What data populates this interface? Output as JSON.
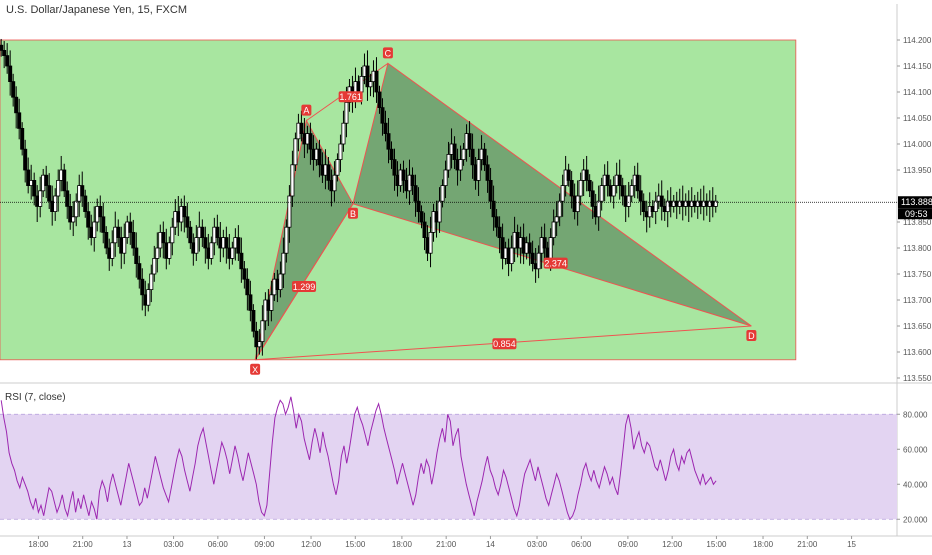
{
  "header": {
    "symbol_title": "U.S. Dollar/Japanese Yen, 15, FXCM"
  },
  "rsi_panel": {
    "title": "RSI (7, close)",
    "ticks": [
      "80.000",
      "60.000",
      "40.000",
      "20.000"
    ],
    "tick_values": [
      80,
      60,
      40,
      20
    ],
    "band": [
      20,
      80
    ],
    "ylim": [
      15,
      95
    ],
    "line_color": "#9c27b0",
    "band_color": "#e3d4f2",
    "values": [
      88,
      78,
      70,
      58,
      52,
      48,
      42,
      38,
      44,
      40,
      36,
      30,
      26,
      32,
      24,
      28,
      22,
      30,
      38,
      36,
      30,
      24,
      28,
      34,
      26,
      22,
      30,
      36,
      24,
      32,
      26,
      34,
      28,
      22,
      30,
      26,
      20,
      36,
      42,
      38,
      30,
      40,
      46,
      40,
      34,
      28,
      36,
      44,
      52,
      46,
      40,
      34,
      28,
      30,
      38,
      32,
      40,
      48,
      56,
      50,
      44,
      38,
      34,
      30,
      38,
      46,
      54,
      60,
      56,
      48,
      42,
      36,
      44,
      52,
      62,
      68,
      72,
      64,
      56,
      48,
      40,
      48,
      56,
      64,
      60,
      54,
      46,
      54,
      62,
      56,
      48,
      42,
      50,
      58,
      52,
      46,
      40,
      30,
      24,
      22,
      28,
      46,
      64,
      78,
      84,
      88,
      86,
      80,
      84,
      90,
      82,
      72,
      80,
      76,
      66,
      60,
      54,
      64,
      72,
      66,
      58,
      70,
      62,
      56,
      48,
      40,
      34,
      42,
      56,
      62,
      52,
      60,
      70,
      80,
      84,
      78,
      74,
      68,
      62,
      70,
      76,
      82,
      86,
      80,
      72,
      66,
      60,
      54,
      48,
      40,
      46,
      52,
      46,
      40,
      34,
      28,
      34,
      44,
      52,
      46,
      54,
      50,
      40,
      48,
      58,
      66,
      72,
      64,
      80,
      76,
      62,
      68,
      72,
      56,
      48,
      40,
      34,
      28,
      22,
      30,
      36,
      42,
      50,
      56,
      48,
      44,
      38,
      34,
      40,
      48,
      44,
      38,
      32,
      26,
      22,
      28,
      38,
      46,
      50,
      54,
      48,
      42,
      50,
      44,
      38,
      32,
      28,
      34,
      40,
      46,
      42,
      36,
      30,
      24,
      20,
      22,
      26,
      34,
      40,
      48,
      52,
      46,
      42,
      48,
      42,
      38,
      44,
      50,
      46,
      40,
      44,
      38,
      34,
      46,
      60,
      74,
      80,
      72,
      60,
      66,
      70,
      62,
      58,
      64,
      62,
      56,
      50,
      48,
      54,
      48,
      42,
      48,
      56,
      60,
      52,
      48,
      56,
      52,
      58,
      60,
      54,
      48,
      44,
      40,
      46,
      40,
      42,
      44,
      40,
      42
    ]
  },
  "chart_data": {
    "type": "candlestick",
    "title": "U.S. Dollar/Japanese Yen, 15, FXCM",
    "ylim": [
      113.55,
      114.25
    ],
    "y_ticks": [
      114.2,
      114.15,
      114.1,
      114.05,
      114.0,
      113.95,
      113.9,
      113.85,
      113.8,
      113.75,
      113.7,
      113.65,
      113.6,
      113.55
    ],
    "y_tick_labels": [
      "114.200",
      "114.150",
      "114.100",
      "114.050",
      "114.000",
      "113.950",
      "113.900",
      "113.850",
      "113.800",
      "113.750",
      "113.700",
      "113.650",
      "113.600",
      "113.550"
    ],
    "x_tick_labels": [
      "18:00",
      "21:00",
      "13",
      "03:00",
      "06:00",
      "09:00",
      "12:00",
      "15:00",
      "18:00",
      "21:00",
      "14",
      "03:00",
      "06:00",
      "09:00",
      "12:00",
      "15:00",
      "18:00",
      "21:00",
      "15"
    ],
    "x_tick_index": [
      16,
      35,
      54,
      74,
      93,
      113,
      133,
      152,
      172,
      191,
      210,
      230,
      249,
      269,
      288,
      307,
      327,
      346,
      365
    ],
    "bar_count": 385,
    "current_price": 113.888,
    "current_price_label": "113.888",
    "countdown_label": "09:53",
    "price_line_color": "#000000",
    "up_color": "#ffffff",
    "down_color": "#000000",
    "background_color": "#ffffff",
    "series_close": [
      114.18,
      114.17,
      114.15,
      114.12,
      114.09,
      114.06,
      114.03,
      113.99,
      113.95,
      113.92,
      113.93,
      113.9,
      113.88,
      113.91,
      113.94,
      113.92,
      113.89,
      113.87,
      113.9,
      113.93,
      113.95,
      113.91,
      113.88,
      113.85,
      113.86,
      113.89,
      113.92,
      113.9,
      113.87,
      113.84,
      113.82,
      113.85,
      113.88,
      113.86,
      113.83,
      113.8,
      113.78,
      113.81,
      113.84,
      113.82,
      113.79,
      113.82,
      113.85,
      113.83,
      113.8,
      113.77,
      113.74,
      113.71,
      113.69,
      113.72,
      113.75,
      113.78,
      113.8,
      113.83,
      113.81,
      113.78,
      113.81,
      113.84,
      113.87,
      113.85,
      113.88,
      113.86,
      113.84,
      113.81,
      113.79,
      113.82,
      113.84,
      113.82,
      113.8,
      113.78,
      113.81,
      113.84,
      113.82,
      113.8,
      113.82,
      113.8,
      113.78,
      113.8,
      113.82,
      113.79,
      113.76,
      113.74,
      113.71,
      113.68,
      113.64,
      113.61,
      113.62,
      113.66,
      113.7,
      113.68,
      113.71,
      113.74,
      113.72,
      113.75,
      113.79,
      113.84,
      113.9,
      113.96,
      114.01,
      114.04,
      114.02,
      114.0,
      114.02,
      113.99,
      113.97,
      113.99,
      113.96,
      113.94,
      113.96,
      113.93,
      113.91,
      113.94,
      113.97,
      114.0,
      114.04,
      114.08,
      114.11,
      114.09,
      114.12,
      114.1,
      114.13,
      114.15,
      114.11,
      114.12,
      114.14,
      114.1,
      114.07,
      114.04,
      114.02,
      113.99,
      113.97,
      113.94,
      113.92,
      113.95,
      113.93,
      113.91,
      113.94,
      113.92,
      113.89,
      113.87,
      113.85,
      113.82,
      113.79,
      113.83,
      113.87,
      113.85,
      113.89,
      113.92,
      113.95,
      113.98,
      114.0,
      113.97,
      113.95,
      113.97,
      113.99,
      114.02,
      113.99,
      113.96,
      113.93,
      113.97,
      113.99,
      113.96,
      113.93,
      113.89,
      113.86,
      113.84,
      113.82,
      113.78,
      113.8,
      113.77,
      113.8,
      113.83,
      113.8,
      113.82,
      113.79,
      113.81,
      113.79,
      113.77,
      113.76,
      113.79,
      113.82,
      113.8,
      113.78,
      113.82,
      113.85,
      113.86,
      113.89,
      113.92,
      113.95,
      113.93,
      113.9,
      113.87,
      113.9,
      113.93,
      113.95,
      113.93,
      113.91,
      113.88,
      113.86,
      113.89,
      113.92,
      113.94,
      113.92,
      113.9,
      113.92,
      113.94,
      113.92,
      113.9,
      113.88,
      113.9,
      113.92,
      113.94,
      113.91,
      113.89,
      113.87,
      113.86,
      113.88,
      113.87,
      113.89,
      113.9,
      113.88,
      113.87,
      113.89,
      113.88,
      113.89,
      113.88,
      113.89,
      113.88,
      113.89,
      113.88,
      113.89,
      113.88,
      113.89,
      113.88,
      113.89,
      113.88,
      113.89,
      113.88,
      113.89
    ]
  },
  "harmonic": {
    "fill_color": "#6b9a6b",
    "line_color": "#ef5350",
    "box_color": "#a8e6a0",
    "box_range": {
      "start_index": 0,
      "end_index": 385,
      "top": 114.2,
      "bottom": 113.585
    },
    "points": [
      {
        "label": "X",
        "index": 109,
        "price": 113.585
      },
      {
        "label": "A",
        "index": 131,
        "price": 114.045
      },
      {
        "label": "B",
        "index": 151,
        "price": 113.885
      },
      {
        "label": "C",
        "index": 166,
        "price": 114.155
      },
      {
        "label": "D",
        "index": 322,
        "price": 113.65
      }
    ],
    "ratios": [
      {
        "text": "1.761",
        "index": 150,
        "price": 114.09
      },
      {
        "text": "1.299",
        "index": 130,
        "price": 113.725
      },
      {
        "text": "2.374",
        "index": 238,
        "price": 113.77
      },
      {
        "text": "0.854",
        "index": 216,
        "price": 113.615
      }
    ]
  }
}
